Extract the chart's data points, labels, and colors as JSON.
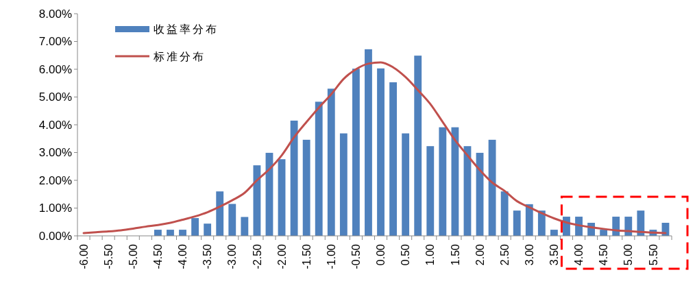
{
  "chart_data": {
    "type": "bar",
    "categories": [
      "-6.00",
      null,
      "-5.50",
      null,
      "-5.00",
      null,
      "-4.50",
      null,
      "-4.00",
      null,
      "-3.50",
      null,
      "-3.00",
      null,
      "-2.50",
      null,
      "-2.00",
      null,
      "-1.50",
      null,
      "-1.00",
      null,
      "-0.50",
      null,
      "0.00",
      null,
      "0.50",
      null,
      "1.00",
      null,
      "1.50",
      null,
      "2.00",
      null,
      "2.50",
      null,
      "3.00",
      null,
      "3.50",
      null,
      "4.00",
      null,
      "4.50",
      null,
      "5.00",
      null,
      "5.50",
      null
    ],
    "series": [
      {
        "name": "收益率分布",
        "color": "#4f81bd",
        "values": [
          0,
          0,
          0,
          0,
          0,
          0,
          0.22,
          0.22,
          0.22,
          0.64,
          0.44,
          1.6,
          1.15,
          0.68,
          2.54,
          2.99,
          2.76,
          4.15,
          3.46,
          4.83,
          5.3,
          3.69,
          6.02,
          6.72,
          6.03,
          5.53,
          3.69,
          6.49,
          3.23,
          3.91,
          3.91,
          3.23,
          2.99,
          3.46,
          1.6,
          0.91,
          1.14,
          0.91,
          0.22,
          0.69,
          0.69,
          0.47,
          0.22,
          0.69,
          0.69,
          0.91,
          0.22,
          0.47
        ]
      },
      {
        "name": "标准分布",
        "type": "line",
        "color": "#c0504d",
        "values": [
          0.1,
          0.13,
          0.16,
          0.2,
          0.26,
          0.33,
          0.39,
          0.47,
          0.58,
          0.7,
          0.85,
          1.05,
          1.28,
          1.55,
          2.0,
          2.4,
          2.9,
          3.55,
          4.1,
          4.62,
          5.1,
          5.65,
          6.0,
          6.2,
          6.25,
          6.07,
          5.72,
          5.25,
          4.75,
          4.1,
          3.45,
          2.9,
          2.37,
          1.92,
          1.62,
          1.25,
          1.03,
          0.82,
          0.63,
          0.48,
          0.38,
          0.31,
          0.25,
          0.2,
          0.17,
          0.14,
          0.12,
          0.1
        ]
      }
    ],
    "ylim": [
      0,
      8
    ],
    "yticks": [
      {
        "value": 0,
        "label": "0.00%"
      },
      {
        "value": 1,
        "label": "1.00%"
      },
      {
        "value": 2,
        "label": "2.00%"
      },
      {
        "value": 3,
        "label": "3.00%"
      },
      {
        "value": 4,
        "label": "4.00%"
      },
      {
        "value": 5,
        "label": "5.00%"
      },
      {
        "value": 6,
        "label": "6.00%"
      },
      {
        "value": 7,
        "label": "7.00%"
      },
      {
        "value": 8,
        "label": "8.00%"
      }
    ],
    "legend": "top left",
    "grid": false
  }
}
